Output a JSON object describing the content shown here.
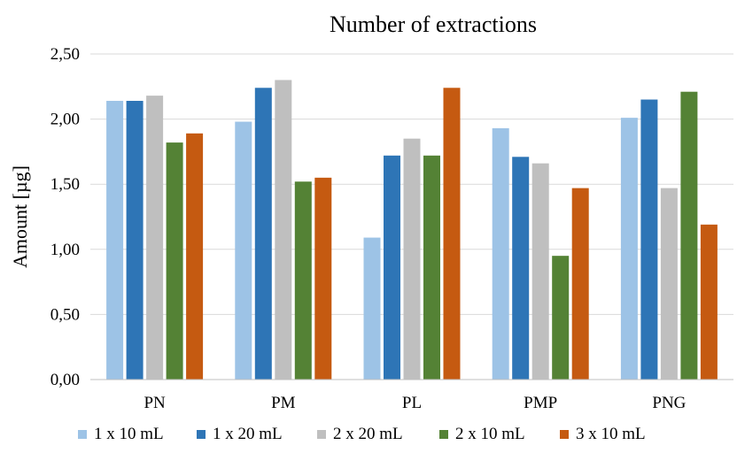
{
  "chart_data": {
    "type": "bar",
    "title": "Number of extractions",
    "xlabel": "",
    "ylabel": "Amount [µg]",
    "ylim": [
      0,
      2.5
    ],
    "yticks": [
      "0,00",
      "0,50",
      "1,00",
      "1,50",
      "2,00",
      "2,50"
    ],
    "grid": true,
    "legend_position": "bottom",
    "categories": [
      "PN",
      "PM",
      "PL",
      "PMP",
      "PNG"
    ],
    "series": [
      {
        "name": "1 x 10 mL",
        "color": "#9dc3e6",
        "values": [
          2.14,
          1.98,
          1.09,
          1.93,
          2.01
        ]
      },
      {
        "name": "1 x 20 mL",
        "color": "#2e75b6",
        "values": [
          2.14,
          2.24,
          1.72,
          1.71,
          2.15
        ]
      },
      {
        "name": "2 x 20 mL",
        "color": "#bfbfbf",
        "values": [
          2.18,
          2.3,
          1.85,
          1.66,
          1.47
        ]
      },
      {
        "name": "2 x 10 mL",
        "color": "#548235",
        "values": [
          1.82,
          1.52,
          1.72,
          0.95,
          2.21
        ]
      },
      {
        "name": "3 x 10 mL",
        "color": "#c55a11",
        "values": [
          1.89,
          1.55,
          2.24,
          1.47,
          1.19
        ]
      }
    ]
  }
}
